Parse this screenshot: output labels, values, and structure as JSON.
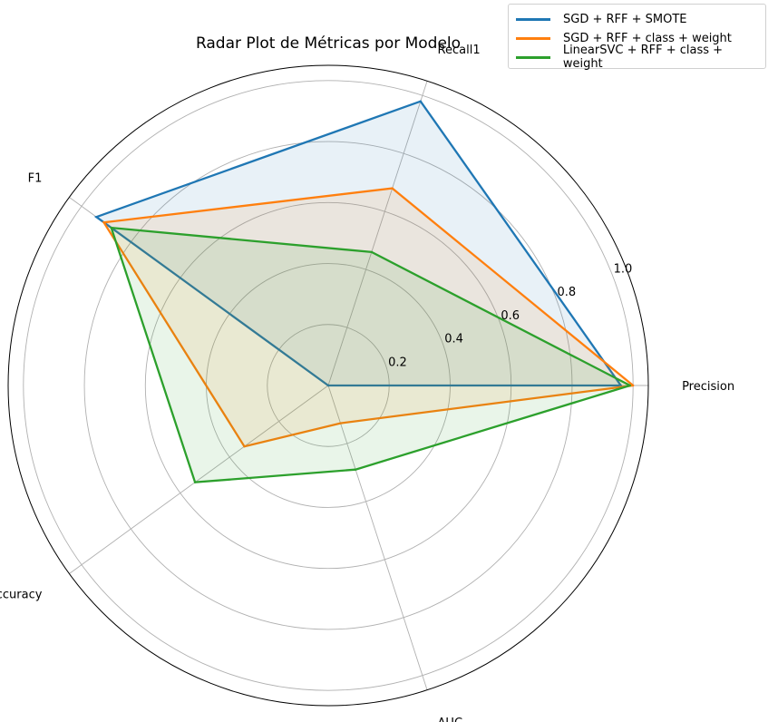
{
  "chart_data": {
    "type": "radar",
    "title": "Radar Plot de Métricas por Modelo",
    "axes": [
      "Precision",
      "Recall1",
      "F1",
      "Accuracy",
      "AUC"
    ],
    "rlim": [
      0,
      1.05
    ],
    "rticks": [
      0.2,
      0.4,
      0.6,
      0.8,
      1.0
    ],
    "rtick_labels": [
      "0.2",
      "0.4",
      "0.6",
      "0.8",
      "1.0"
    ],
    "grid": true,
    "legend_position": "top-right",
    "series": [
      {
        "name": "SGD + RFF + SMOTE",
        "color": "#1f77b4",
        "values": [
          0.96,
          0.98,
          0.94,
          0.0,
          0.0
        ]
      },
      {
        "name": "SGD + RFF + class + weight",
        "color": "#ff7f0e",
        "values": [
          1.0,
          0.68,
          0.91,
          0.34,
          0.13
        ]
      },
      {
        "name": "LinearSVC + RFF + class + weight",
        "color": "#2ca02c",
        "values": [
          0.99,
          0.46,
          0.88,
          0.54,
          0.29
        ]
      }
    ]
  }
}
